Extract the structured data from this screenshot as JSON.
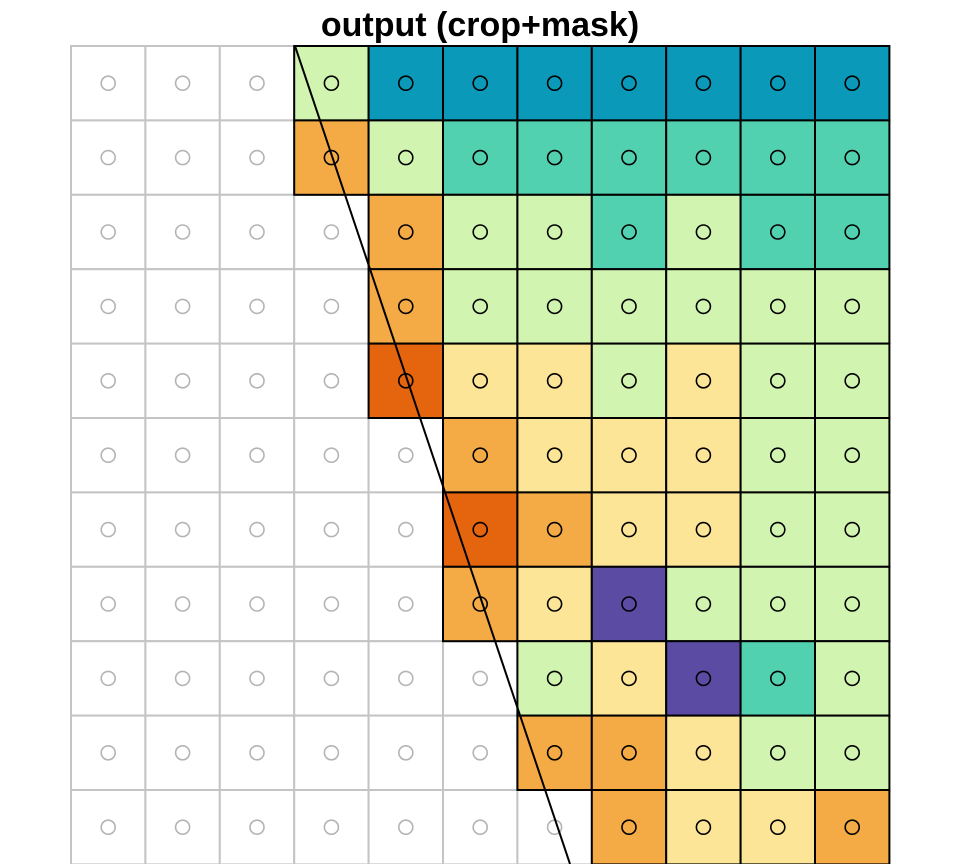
{
  "title": "output (crop+mask)",
  "grid": [
    [
      null,
      null,
      null,
      "#d1f5b0",
      "#0a99b8",
      "#0a99b8",
      "#0a99b8",
      "#0a99b8",
      "#0a99b8",
      "#0a99b8",
      "#0a99b8"
    ],
    [
      null,
      null,
      null,
      "#f5ab45",
      "#d1f5b0",
      "#52d1b0",
      "#52d1b0",
      "#52d1b0",
      "#52d1b0",
      "#52d1b0",
      "#52d1b0"
    ],
    [
      null,
      null,
      null,
      null,
      "#f5ab45",
      "#d1f5b0",
      "#d1f5b0",
      "#52d1b0",
      "#d1f5b0",
      "#52d1b0",
      "#52d1b0"
    ],
    [
      null,
      null,
      null,
      null,
      "#f5ab45",
      "#d1f5b0",
      "#d1f5b0",
      "#d1f5b0",
      "#d1f5b0",
      "#d1f5b0",
      "#d1f5b0"
    ],
    [
      null,
      null,
      null,
      null,
      "#e5640e",
      "#fde597",
      "#fde597",
      "#d1f5b0",
      "#fde597",
      "#d1f5b0",
      "#d1f5b0"
    ],
    [
      null,
      null,
      null,
      null,
      null,
      "#f5ab45",
      "#fde597",
      "#fde597",
      "#fde597",
      "#d1f5b0",
      "#d1f5b0"
    ],
    [
      null,
      null,
      null,
      null,
      null,
      "#e5640e",
      "#f5ab45",
      "#fde597",
      "#fde597",
      "#d1f5b0",
      "#d1f5b0"
    ],
    [
      null,
      null,
      null,
      null,
      null,
      "#f5ab45",
      "#fde597",
      "#5b4ba3",
      "#d1f5b0",
      "#d1f5b0",
      "#d1f5b0"
    ],
    [
      null,
      null,
      null,
      null,
      null,
      null,
      "#d1f5b0",
      "#fde597",
      "#5b4ba3",
      "#52d1b0",
      "#d1f5b0"
    ],
    [
      null,
      null,
      null,
      null,
      null,
      null,
      "#f5ab45",
      "#f5ab45",
      "#fde597",
      "#d1f5b0",
      "#d1f5b0"
    ],
    [
      null,
      null,
      null,
      null,
      null,
      null,
      null,
      "#f5ab45",
      "#fde597",
      "#fde597",
      "#f5ab45"
    ]
  ]
}
